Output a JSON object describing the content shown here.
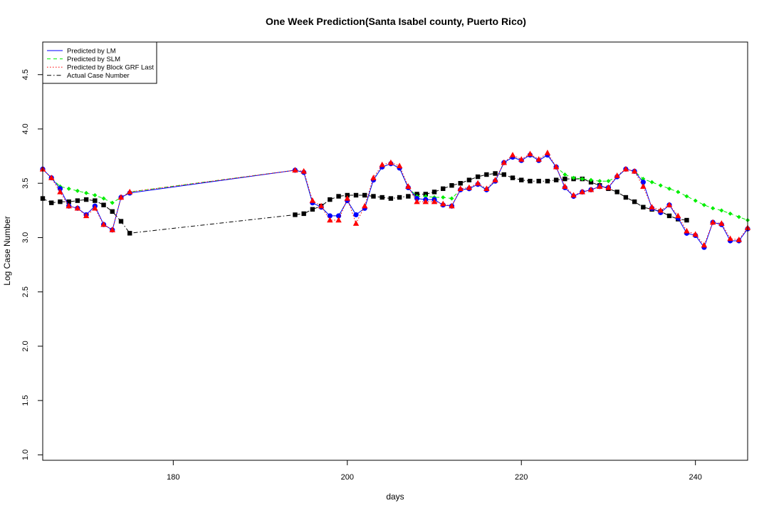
{
  "chart_data": {
    "type": "line",
    "title": "One Week Prediction(Santa Isabel county, Puerto Rico)",
    "xlabel": "days",
    "ylabel": "Log Case Number",
    "xlim": [
      165,
      246
    ],
    "ylim": [
      0.95,
      4.8
    ],
    "xticks": [
      180,
      200,
      220,
      240
    ],
    "yticks": [
      1.0,
      1.5,
      2.0,
      2.5,
      3.0,
      3.5,
      4.0,
      4.5
    ],
    "legend_position": "top-left",
    "grid": false,
    "series": [
      {
        "name": "Predicted by LM",
        "color": "#0000ff",
        "line": "solid",
        "marker": "circle",
        "x": [
          165,
          166,
          167,
          168,
          169,
          170,
          171,
          172,
          173,
          174,
          175,
          194,
          195,
          196,
          197,
          198,
          199,
          200,
          201,
          202,
          203,
          204,
          205,
          206,
          207,
          208,
          209,
          210,
          211,
          212,
          213,
          214,
          215,
          216,
          217,
          218,
          219,
          220,
          221,
          222,
          223,
          224,
          225,
          226,
          227,
          228,
          229,
          230,
          231,
          232,
          233,
          234,
          235,
          236,
          237,
          238,
          239,
          240,
          241,
          242,
          243,
          244,
          245,
          246
        ],
        "y": [
          3.63,
          3.55,
          3.45,
          3.29,
          3.27,
          3.21,
          3.29,
          3.12,
          3.07,
          3.37,
          3.41,
          3.62,
          3.6,
          3.32,
          3.28,
          3.2,
          3.2,
          3.34,
          3.21,
          3.27,
          3.53,
          3.65,
          3.68,
          3.64,
          3.46,
          3.36,
          3.35,
          3.35,
          3.3,
          3.29,
          3.44,
          3.45,
          3.49,
          3.44,
          3.52,
          3.69,
          3.74,
          3.71,
          3.76,
          3.71,
          3.76,
          3.65,
          3.46,
          3.38,
          3.42,
          3.44,
          3.47,
          3.46,
          3.56,
          3.63,
          3.61,
          3.51,
          3.27,
          3.23,
          3.3,
          3.18,
          3.04,
          3.02,
          2.91,
          3.14,
          3.12,
          2.97,
          2.97,
          3.08
        ]
      },
      {
        "name": "Predicted by SLM",
        "color": "#00ee00",
        "line": "dashed",
        "marker": "diamond",
        "x": [
          165,
          166,
          167,
          168,
          169,
          170,
          171,
          172,
          173,
          174,
          175,
          194,
          195,
          196,
          197,
          198,
          199,
          200,
          201,
          202,
          203,
          204,
          205,
          206,
          207,
          208,
          209,
          210,
          211,
          212,
          213,
          214,
          215,
          216,
          217,
          218,
          219,
          220,
          221,
          222,
          223,
          224,
          225,
          226,
          227,
          228,
          229,
          230,
          231,
          232,
          233,
          234,
          235,
          236,
          237,
          238,
          239,
          240,
          241,
          242,
          243,
          244,
          245,
          246
        ],
        "y": [
          3.63,
          3.55,
          3.47,
          3.45,
          3.43,
          3.41,
          3.39,
          3.36,
          3.32,
          3.37,
          3.42,
          3.62,
          3.6,
          3.32,
          3.28,
          3.2,
          3.2,
          3.34,
          3.21,
          3.27,
          3.53,
          3.65,
          3.68,
          3.64,
          3.46,
          3.38,
          3.38,
          3.37,
          3.37,
          3.36,
          3.44,
          3.45,
          3.49,
          3.44,
          3.52,
          3.69,
          3.74,
          3.71,
          3.76,
          3.71,
          3.76,
          3.65,
          3.58,
          3.55,
          3.54,
          3.53,
          3.52,
          3.52,
          3.56,
          3.63,
          3.61,
          3.54,
          3.51,
          3.48,
          3.45,
          3.42,
          3.38,
          3.34,
          3.3,
          3.27,
          3.25,
          3.22,
          3.19,
          3.16
        ]
      },
      {
        "name": "Predicted by Block GRF Last",
        "color": "#ff0000",
        "line": "dotted",
        "marker": "triangle",
        "x": [
          165,
          166,
          167,
          168,
          169,
          170,
          171,
          172,
          173,
          174,
          175,
          194,
          195,
          196,
          197,
          198,
          199,
          200,
          201,
          202,
          203,
          204,
          205,
          206,
          207,
          208,
          209,
          210,
          211,
          212,
          213,
          214,
          215,
          216,
          217,
          218,
          219,
          220,
          221,
          222,
          223,
          224,
          225,
          226,
          227,
          228,
          229,
          230,
          231,
          232,
          233,
          234,
          235,
          236,
          237,
          238,
          239,
          240,
          241,
          242,
          243,
          244,
          245,
          246
        ],
        "y": [
          3.63,
          3.55,
          3.42,
          3.29,
          3.27,
          3.2,
          3.27,
          3.12,
          3.07,
          3.37,
          3.42,
          3.62,
          3.61,
          3.34,
          3.29,
          3.16,
          3.16,
          3.36,
          3.13,
          3.29,
          3.55,
          3.67,
          3.69,
          3.66,
          3.47,
          3.33,
          3.33,
          3.33,
          3.31,
          3.29,
          3.45,
          3.46,
          3.5,
          3.45,
          3.53,
          3.69,
          3.76,
          3.72,
          3.77,
          3.72,
          3.78,
          3.65,
          3.47,
          3.39,
          3.42,
          3.44,
          3.47,
          3.46,
          3.57,
          3.63,
          3.61,
          3.47,
          3.28,
          3.25,
          3.3,
          3.2,
          3.06,
          3.03,
          2.93,
          3.14,
          3.13,
          2.99,
          2.98,
          3.09
        ]
      },
      {
        "name": "Actual Case Number",
        "color": "#000000",
        "line": "dashdot",
        "marker": "square",
        "x": [
          165,
          166,
          167,
          168,
          169,
          170,
          171,
          172,
          173,
          174,
          175,
          194,
          195,
          196,
          197,
          198,
          199,
          200,
          201,
          202,
          203,
          204,
          205,
          206,
          207,
          208,
          209,
          210,
          211,
          212,
          213,
          214,
          215,
          216,
          217,
          218,
          219,
          220,
          221,
          222,
          223,
          224,
          225,
          226,
          227,
          228,
          229,
          230,
          231,
          232,
          233,
          234,
          235,
          236,
          237,
          238,
          239,
          240,
          241,
          242,
          243,
          244,
          245,
          246
        ],
        "y": [
          3.36,
          3.32,
          3.33,
          3.33,
          3.34,
          3.35,
          3.34,
          3.3,
          3.24,
          3.15,
          3.04,
          3.21,
          3.22,
          3.26,
          3.29,
          3.35,
          3.38,
          3.39,
          3.39,
          3.39,
          3.38,
          3.37,
          3.36,
          3.37,
          3.38,
          3.4,
          3.4,
          3.42,
          3.45,
          3.48,
          3.5,
          3.53,
          3.56,
          3.58,
          3.59,
          3.58,
          3.55,
          3.53,
          3.52,
          3.52,
          3.52,
          3.53,
          3.54,
          3.54,
          3.54,
          3.51,
          3.48,
          3.45,
          3.42,
          3.37,
          3.33,
          3.28,
          3.26,
          3.24,
          3.2,
          3.17,
          3.16,
          null,
          null,
          null,
          null,
          null,
          null,
          null
        ]
      }
    ]
  }
}
